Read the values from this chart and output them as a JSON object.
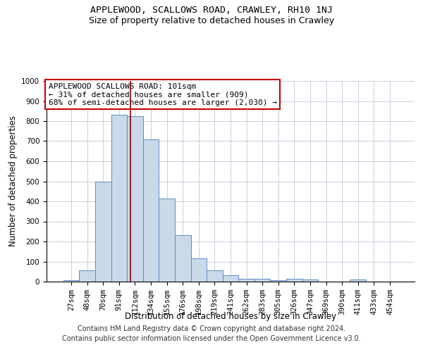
{
  "title": "APPLEWOOD, SCALLOWS ROAD, CRAWLEY, RH10 1NJ",
  "subtitle": "Size of property relative to detached houses in Crawley",
  "xlabel": "Distribution of detached houses by size in Crawley",
  "ylabel": "Number of detached properties",
  "bar_labels": [
    "27sqm",
    "48sqm",
    "70sqm",
    "91sqm",
    "112sqm",
    "134sqm",
    "155sqm",
    "176sqm",
    "198sqm",
    "219sqm",
    "241sqm",
    "262sqm",
    "283sqm",
    "305sqm",
    "326sqm",
    "347sqm",
    "369sqm",
    "390sqm",
    "411sqm",
    "433sqm",
    "454sqm"
  ],
  "bar_values": [
    8,
    57,
    500,
    830,
    825,
    710,
    415,
    230,
    115,
    55,
    32,
    15,
    15,
    8,
    15,
    9,
    0,
    0,
    10,
    0,
    0
  ],
  "bar_color": "#c9d9e8",
  "bar_edge_color": "#5b8cc8",
  "vline_x": 3.72,
  "vline_color": "#8b0000",
  "annotation_line1": "APPLEWOOD SCALLOWS ROAD: 101sqm",
  "annotation_line2": "← 31% of detached houses are smaller (909)",
  "annotation_line3": "68% of semi-detached houses are larger (2,030) →",
  "annotation_box_color": "#ffffff",
  "annotation_box_edge_color": "#cc0000",
  "ylim": [
    0,
    1000
  ],
  "yticks": [
    0,
    100,
    200,
    300,
    400,
    500,
    600,
    700,
    800,
    900,
    1000
  ],
  "footer_line1": "Contains HM Land Registry data © Crown copyright and database right 2024.",
  "footer_line2": "Contains public sector information licensed under the Open Government Licence v3.0.",
  "background_color": "#ffffff",
  "grid_color": "#c0c8d8",
  "title_fontsize": 9.5,
  "subtitle_fontsize": 9,
  "axis_label_fontsize": 8.5,
  "tick_fontsize": 7.5,
  "annotation_fontsize": 8,
  "footer_fontsize": 7
}
